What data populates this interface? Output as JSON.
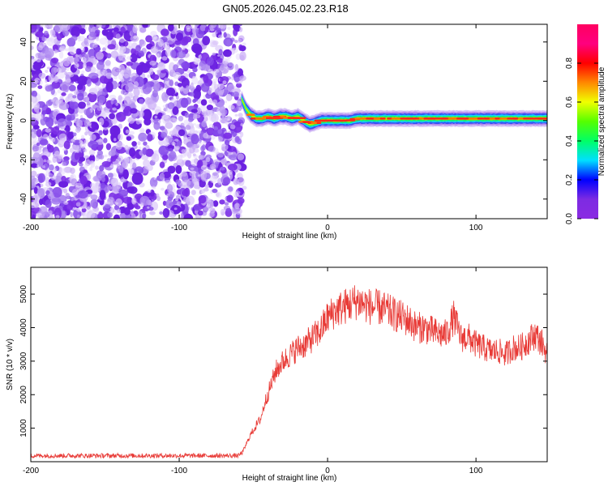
{
  "title": "GN05.2026.045.02.23.R18",
  "colors": {
    "frame": "#000000",
    "snr_line": "#e83a36",
    "cb_stops": [
      "#8a2be2",
      "#7d2be2",
      "#0000ff",
      "#00e0ff",
      "#00ff66",
      "#55ff00",
      "#f0ff00",
      "#ff8800",
      "#ff0000",
      "#ff007f",
      "#ff0060"
    ]
  },
  "chart_data": [
    {
      "type": "heatmap",
      "xlabel": "Height of straight line (km)",
      "ylabel": "Frequency (Hz)",
      "xlim": [
        -200,
        148
      ],
      "ylim": [
        -50,
        49
      ],
      "xticks": [
        "-200",
        "-100",
        "0",
        "100"
      ],
      "xtick_values": [
        -200,
        -100,
        0,
        100
      ],
      "yticks": [
        "-40",
        "-20",
        "0",
        "20",
        "40"
      ],
      "ytick_values": [
        -40,
        -20,
        0,
        20,
        40
      ],
      "noise_region_x": [
        -200,
        -57
      ],
      "ridge": {
        "x": [
          -58,
          -55,
          -52,
          -48,
          -44,
          -40,
          -36,
          -32,
          -28,
          -24,
          -20,
          -16,
          -12,
          -8,
          -4,
          0,
          5,
          10,
          15,
          20,
          30,
          40,
          60,
          80,
          100,
          120,
          148
        ],
        "freq": [
          11,
          6,
          3,
          1,
          1,
          2,
          1,
          2,
          2,
          1,
          2,
          0,
          -2,
          -1,
          0,
          0,
          0,
          0,
          0,
          1,
          1,
          1,
          1,
          1,
          1,
          1,
          1
        ]
      },
      "colorbar": {
        "label": "Normalized spectral amplitude",
        "range": [
          0,
          1
        ],
        "ticks": [
          "0.0",
          "0.2",
          "0.4",
          "0.6",
          "0.8"
        ],
        "tick_values": [
          0,
          0.2,
          0.4,
          0.6,
          0.8
        ]
      },
      "grid": false
    },
    {
      "type": "line",
      "xlabel": "Height of straight line (km)",
      "ylabel": "SNR (10 * v/v)",
      "xlim": [
        -200,
        148
      ],
      "ylim": [
        0,
        5800
      ],
      "xticks": [
        "-200",
        "-100",
        "0",
        "100"
      ],
      "xtick_values": [
        -200,
        -100,
        0,
        100
      ],
      "yticks": [
        "1000",
        "2000",
        "3000",
        "4000",
        "5000"
      ],
      "ytick_values": [
        1000,
        2000,
        3000,
        4000,
        5000
      ],
      "series": [
        {
          "x": [
            -200,
            -60,
            -57,
            -52,
            -45,
            -42,
            -38,
            -35,
            -30,
            -25,
            -20,
            -15,
            -10,
            -5,
            0,
            5,
            10,
            15,
            20,
            25,
            30,
            35,
            40,
            45,
            50,
            55,
            60,
            65,
            70,
            75,
            80,
            85,
            90,
            95,
            100,
            105,
            110,
            115,
            120,
            125,
            130,
            135,
            140,
            145,
            148
          ],
          "y": [
            180,
            180,
            300,
            800,
            1300,
            1800,
            2300,
            2700,
            3000,
            3200,
            3400,
            3500,
            3700,
            3900,
            4300,
            4500,
            4600,
            4700,
            4800,
            4700,
            4600,
            4600,
            4500,
            4400,
            4300,
            4200,
            4000,
            4000,
            3900,
            3800,
            3800,
            4300,
            3700,
            3700,
            3500,
            3400,
            3300,
            3300,
            3200,
            3400,
            3400,
            3600,
            3800,
            3500,
            3200
          ]
        }
      ],
      "grid": false
    }
  ]
}
